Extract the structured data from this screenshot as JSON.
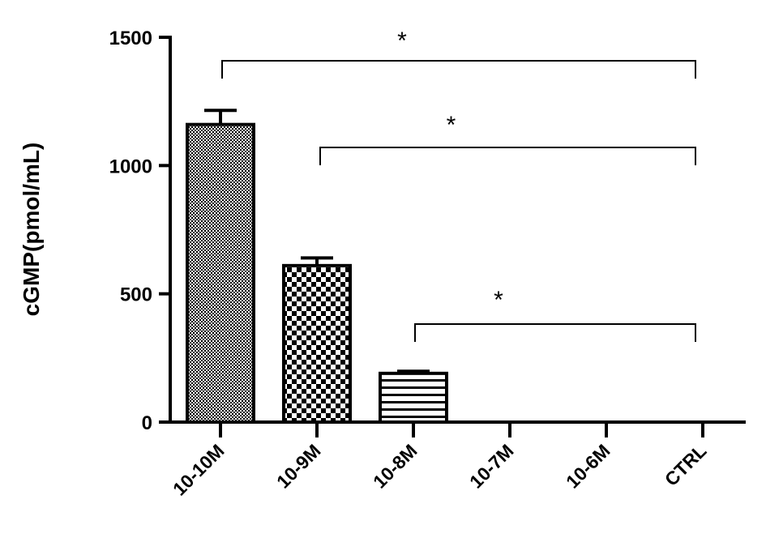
{
  "chart_data": {
    "type": "bar",
    "ylabel": "cGMP(pmol/mL)",
    "xlabel": "",
    "ylim": [
      0,
      1500
    ],
    "yticks": [
      0,
      500,
      1000,
      1500
    ],
    "categories": [
      "10-10M",
      "10-9M",
      "10-8M",
      "10-7M",
      "10-6M",
      "CTRL"
    ],
    "values": [
      1160,
      610,
      190,
      0,
      0,
      0
    ],
    "errors": [
      55,
      30,
      8,
      0,
      0,
      0
    ],
    "bar_patterns": [
      "dense-checker",
      "checker",
      "horizontal-lines",
      "none",
      "none",
      "none"
    ],
    "significance": [
      {
        "from": "10-10M",
        "to": "CTRL",
        "label": "*"
      },
      {
        "from": "10-9M",
        "to": "CTRL",
        "label": "*"
      },
      {
        "from": "10-8M",
        "to": "CTRL",
        "label": "*"
      }
    ],
    "grid": false,
    "legend": "none"
  }
}
